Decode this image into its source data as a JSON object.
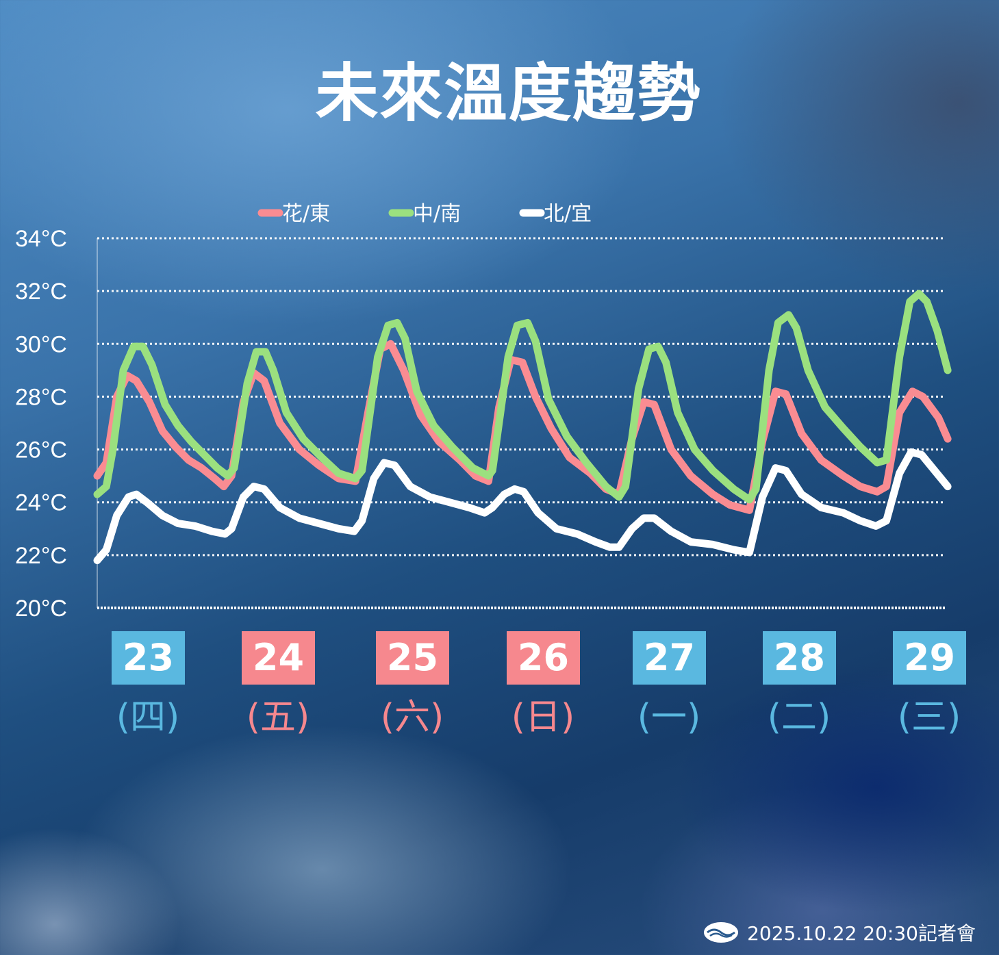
{
  "title": "未來溫度趨勢",
  "footer": {
    "text": "2025.10.22 20:30記者會",
    "logo": "weather-bureau-logo"
  },
  "colors": {
    "hualien_taitung": "#fa8c92",
    "central_south": "#9be07f",
    "north_yilan": "#ffffff",
    "weekday_box": "#5ab8e0",
    "weekend_box": "#f6888e",
    "weekday_text": "#5ab8e0",
    "weekend_text": "#f6888e"
  },
  "days": [
    {
      "date": "23",
      "weekday": "(四)",
      "type": "weekday"
    },
    {
      "date": "24",
      "weekday": "(五)",
      "type": "weekend"
    },
    {
      "date": "25",
      "weekday": "(六)",
      "type": "weekend"
    },
    {
      "date": "26",
      "weekday": "(日)",
      "type": "weekend"
    },
    {
      "date": "27",
      "weekday": "(一)",
      "type": "weekday"
    },
    {
      "date": "28",
      "weekday": "(二)",
      "type": "weekday"
    },
    {
      "date": "29",
      "weekday": "(三)",
      "type": "weekday"
    }
  ],
  "chart_data": {
    "type": "line",
    "title": "未來溫度趨勢",
    "xlabel": "",
    "ylabel": "",
    "ylim": [
      20,
      34
    ],
    "yticks": [
      "34°C",
      "32°C",
      "30°C",
      "28°C",
      "26°C",
      "24°C",
      "22°C",
      "20°C"
    ],
    "grid": true,
    "legend": "top-center",
    "x_label": [
      "23 (四)",
      "24 (五)",
      "25 (六)",
      "26 (日)",
      "27 (一)",
      "28 (二)",
      "29 (三)"
    ],
    "series": [
      {
        "name": "花/東",
        "color": "#fa8c92",
        "points": [
          [
            0.0,
            25.0
          ],
          [
            0.07,
            25.5
          ],
          [
            0.15,
            28.0
          ],
          [
            0.23,
            28.8
          ],
          [
            0.3,
            28.6
          ],
          [
            0.4,
            27.8
          ],
          [
            0.5,
            26.7
          ],
          [
            0.6,
            26.1
          ],
          [
            0.7,
            25.6
          ],
          [
            0.8,
            25.3
          ],
          [
            0.9,
            24.9
          ],
          [
            0.97,
            24.6
          ],
          [
            1.03,
            25.0
          ],
          [
            1.12,
            27.8
          ],
          [
            1.2,
            28.9
          ],
          [
            1.28,
            28.6
          ],
          [
            1.4,
            27.0
          ],
          [
            1.55,
            26.0
          ],
          [
            1.7,
            25.4
          ],
          [
            1.85,
            24.9
          ],
          [
            1.98,
            24.8
          ],
          [
            2.08,
            27.5
          ],
          [
            2.17,
            29.8
          ],
          [
            2.25,
            30.0
          ],
          [
            2.35,
            29.0
          ],
          [
            2.48,
            27.3
          ],
          [
            2.62,
            26.3
          ],
          [
            2.78,
            25.6
          ],
          [
            2.9,
            25.0
          ],
          [
            3.0,
            24.8
          ],
          [
            3.08,
            27.6
          ],
          [
            3.17,
            29.4
          ],
          [
            3.26,
            29.3
          ],
          [
            3.36,
            28.0
          ],
          [
            3.48,
            26.8
          ],
          [
            3.62,
            25.7
          ],
          [
            3.78,
            25.1
          ],
          [
            3.9,
            24.5
          ],
          [
            4.0,
            24.3
          ],
          [
            4.1,
            26.4
          ],
          [
            4.19,
            27.8
          ],
          [
            4.27,
            27.7
          ],
          [
            4.4,
            26.0
          ],
          [
            4.55,
            25.0
          ],
          [
            4.72,
            24.3
          ],
          [
            4.85,
            23.9
          ],
          [
            5.0,
            23.7
          ],
          [
            5.1,
            26.3
          ],
          [
            5.2,
            28.2
          ],
          [
            5.28,
            28.1
          ],
          [
            5.4,
            26.6
          ],
          [
            5.55,
            25.6
          ],
          [
            5.72,
            25.0
          ],
          [
            5.85,
            24.6
          ],
          [
            5.98,
            24.4
          ],
          [
            6.05,
            24.6
          ],
          [
            6.15,
            27.4
          ],
          [
            6.25,
            28.2
          ],
          [
            6.33,
            28.0
          ],
          [
            6.45,
            27.2
          ],
          [
            6.52,
            26.4
          ]
        ]
      },
      {
        "name": "中/南",
        "color": "#9be07f",
        "points": [
          [
            0.0,
            24.3
          ],
          [
            0.07,
            24.6
          ],
          [
            0.12,
            26.0
          ],
          [
            0.2,
            29.0
          ],
          [
            0.28,
            29.9
          ],
          [
            0.35,
            29.9
          ],
          [
            0.42,
            29.2
          ],
          [
            0.52,
            27.7
          ],
          [
            0.62,
            26.9
          ],
          [
            0.72,
            26.3
          ],
          [
            0.82,
            25.8
          ],
          [
            0.92,
            25.3
          ],
          [
            1.0,
            25.0
          ],
          [
            1.05,
            25.3
          ],
          [
            1.15,
            28.5
          ],
          [
            1.22,
            29.7
          ],
          [
            1.29,
            29.7
          ],
          [
            1.35,
            29.0
          ],
          [
            1.45,
            27.4
          ],
          [
            1.58,
            26.4
          ],
          [
            1.72,
            25.7
          ],
          [
            1.85,
            25.1
          ],
          [
            1.98,
            24.9
          ],
          [
            2.03,
            25.2
          ],
          [
            2.15,
            29.5
          ],
          [
            2.23,
            30.7
          ],
          [
            2.3,
            30.8
          ],
          [
            2.36,
            30.2
          ],
          [
            2.45,
            28.2
          ],
          [
            2.58,
            26.9
          ],
          [
            2.72,
            26.1
          ],
          [
            2.88,
            25.3
          ],
          [
            3.0,
            25.0
          ],
          [
            3.03,
            25.2
          ],
          [
            3.15,
            29.5
          ],
          [
            3.22,
            30.7
          ],
          [
            3.3,
            30.8
          ],
          [
            3.36,
            30.1
          ],
          [
            3.46,
            27.9
          ],
          [
            3.6,
            26.5
          ],
          [
            3.75,
            25.5
          ],
          [
            3.9,
            24.6
          ],
          [
            4.0,
            24.2
          ],
          [
            4.05,
            24.6
          ],
          [
            4.15,
            28.3
          ],
          [
            4.23,
            29.8
          ],
          [
            4.3,
            29.9
          ],
          [
            4.36,
            29.3
          ],
          [
            4.45,
            27.4
          ],
          [
            4.58,
            26.0
          ],
          [
            4.72,
            25.2
          ],
          [
            4.88,
            24.5
          ],
          [
            5.0,
            24.1
          ],
          [
            5.05,
            24.5
          ],
          [
            5.15,
            29.0
          ],
          [
            5.22,
            30.8
          ],
          [
            5.3,
            31.1
          ],
          [
            5.36,
            30.6
          ],
          [
            5.45,
            29.0
          ],
          [
            5.58,
            27.6
          ],
          [
            5.72,
            26.8
          ],
          [
            5.85,
            26.1
          ],
          [
            5.98,
            25.5
          ],
          [
            6.05,
            25.6
          ],
          [
            6.15,
            29.5
          ],
          [
            6.23,
            31.6
          ],
          [
            6.3,
            31.9
          ],
          [
            6.36,
            31.6
          ],
          [
            6.44,
            30.5
          ],
          [
            6.52,
            29.0
          ]
        ]
      },
      {
        "name": "北/宜",
        "color": "#ffffff",
        "points": [
          [
            0.0,
            21.8
          ],
          [
            0.07,
            22.2
          ],
          [
            0.15,
            23.5
          ],
          [
            0.24,
            24.2
          ],
          [
            0.3,
            24.3
          ],
          [
            0.38,
            24.0
          ],
          [
            0.5,
            23.5
          ],
          [
            0.62,
            23.2
          ],
          [
            0.75,
            23.1
          ],
          [
            0.88,
            22.9
          ],
          [
            0.98,
            22.8
          ],
          [
            1.03,
            23.0
          ],
          [
            1.12,
            24.2
          ],
          [
            1.2,
            24.6
          ],
          [
            1.28,
            24.5
          ],
          [
            1.4,
            23.8
          ],
          [
            1.55,
            23.4
          ],
          [
            1.7,
            23.2
          ],
          [
            1.85,
            23.0
          ],
          [
            1.97,
            22.9
          ],
          [
            2.03,
            23.3
          ],
          [
            2.12,
            24.9
          ],
          [
            2.2,
            25.5
          ],
          [
            2.28,
            25.4
          ],
          [
            2.4,
            24.6
          ],
          [
            2.55,
            24.2
          ],
          [
            2.7,
            24.0
          ],
          [
            2.85,
            23.8
          ],
          [
            2.97,
            23.6
          ],
          [
            3.03,
            23.8
          ],
          [
            3.12,
            24.3
          ],
          [
            3.2,
            24.5
          ],
          [
            3.27,
            24.4
          ],
          [
            3.38,
            23.6
          ],
          [
            3.52,
            23.0
          ],
          [
            3.68,
            22.8
          ],
          [
            3.82,
            22.5
          ],
          [
            3.93,
            22.3
          ],
          [
            4.0,
            22.3
          ],
          [
            4.1,
            23.0
          ],
          [
            4.19,
            23.4
          ],
          [
            4.27,
            23.4
          ],
          [
            4.4,
            22.9
          ],
          [
            4.55,
            22.5
          ],
          [
            4.72,
            22.4
          ],
          [
            4.88,
            22.2
          ],
          [
            5.0,
            22.1
          ],
          [
            5.1,
            24.2
          ],
          [
            5.2,
            25.3
          ],
          [
            5.28,
            25.2
          ],
          [
            5.4,
            24.3
          ],
          [
            5.55,
            23.8
          ],
          [
            5.72,
            23.6
          ],
          [
            5.85,
            23.3
          ],
          [
            5.97,
            23.1
          ],
          [
            6.05,
            23.3
          ],
          [
            6.15,
            25.1
          ],
          [
            6.24,
            25.9
          ],
          [
            6.32,
            25.8
          ],
          [
            6.42,
            25.2
          ],
          [
            6.52,
            24.6
          ]
        ]
      }
    ]
  }
}
